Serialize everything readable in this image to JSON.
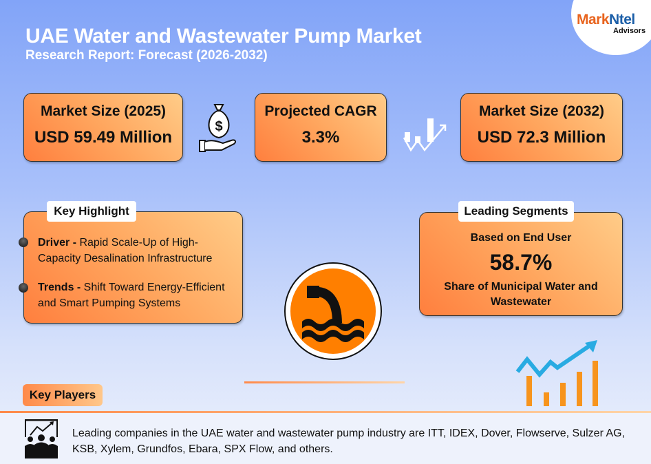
{
  "header": {
    "title": "UAE Water and Wastewater Pump Market",
    "subtitle": "Research Report: Forecast (2026-2032)"
  },
  "logo": {
    "brand_part1": "Mark",
    "brand_part2": "Ntel",
    "tagline": "Advisors"
  },
  "stats": [
    {
      "label": "Market Size (2025)",
      "value": "USD 59.49 Million",
      "icon": "money-bag-hand-icon"
    },
    {
      "label": "Projected CAGR",
      "value": "3.3%",
      "icon": "growth-chart-icon"
    },
    {
      "label": "Market Size (2032)",
      "value": "USD 72.3 Million"
    }
  ],
  "key_highlight": {
    "title": "Key Highlight",
    "items": [
      {
        "label": "Driver -",
        "text": " Rapid Scale-Up of High-Capacity Desalination Infrastructure"
      },
      {
        "label": "Trends -",
        "text": " Shift Toward Energy-Efficient and Smart Pumping Systems"
      }
    ]
  },
  "leading_segments": {
    "title": "Leading Segments",
    "basis": "Based on End User",
    "value": "58.7%",
    "description": "Share of Municipal Water and Wastewater"
  },
  "key_players": {
    "label": "Key Players",
    "text": "Leading companies in the UAE water and wastewater pump industry are ITT, IDEX, Dover, Flowserve, Sulzer AG, KSB, Xylem, Grundfos, Ebara, SPX Flow, and others."
  },
  "colors": {
    "accent_orange": "#ff8a4a",
    "light_orange": "#ffc988",
    "background_blue": "#84a6f9",
    "arrow_blue": "#29abe2"
  }
}
